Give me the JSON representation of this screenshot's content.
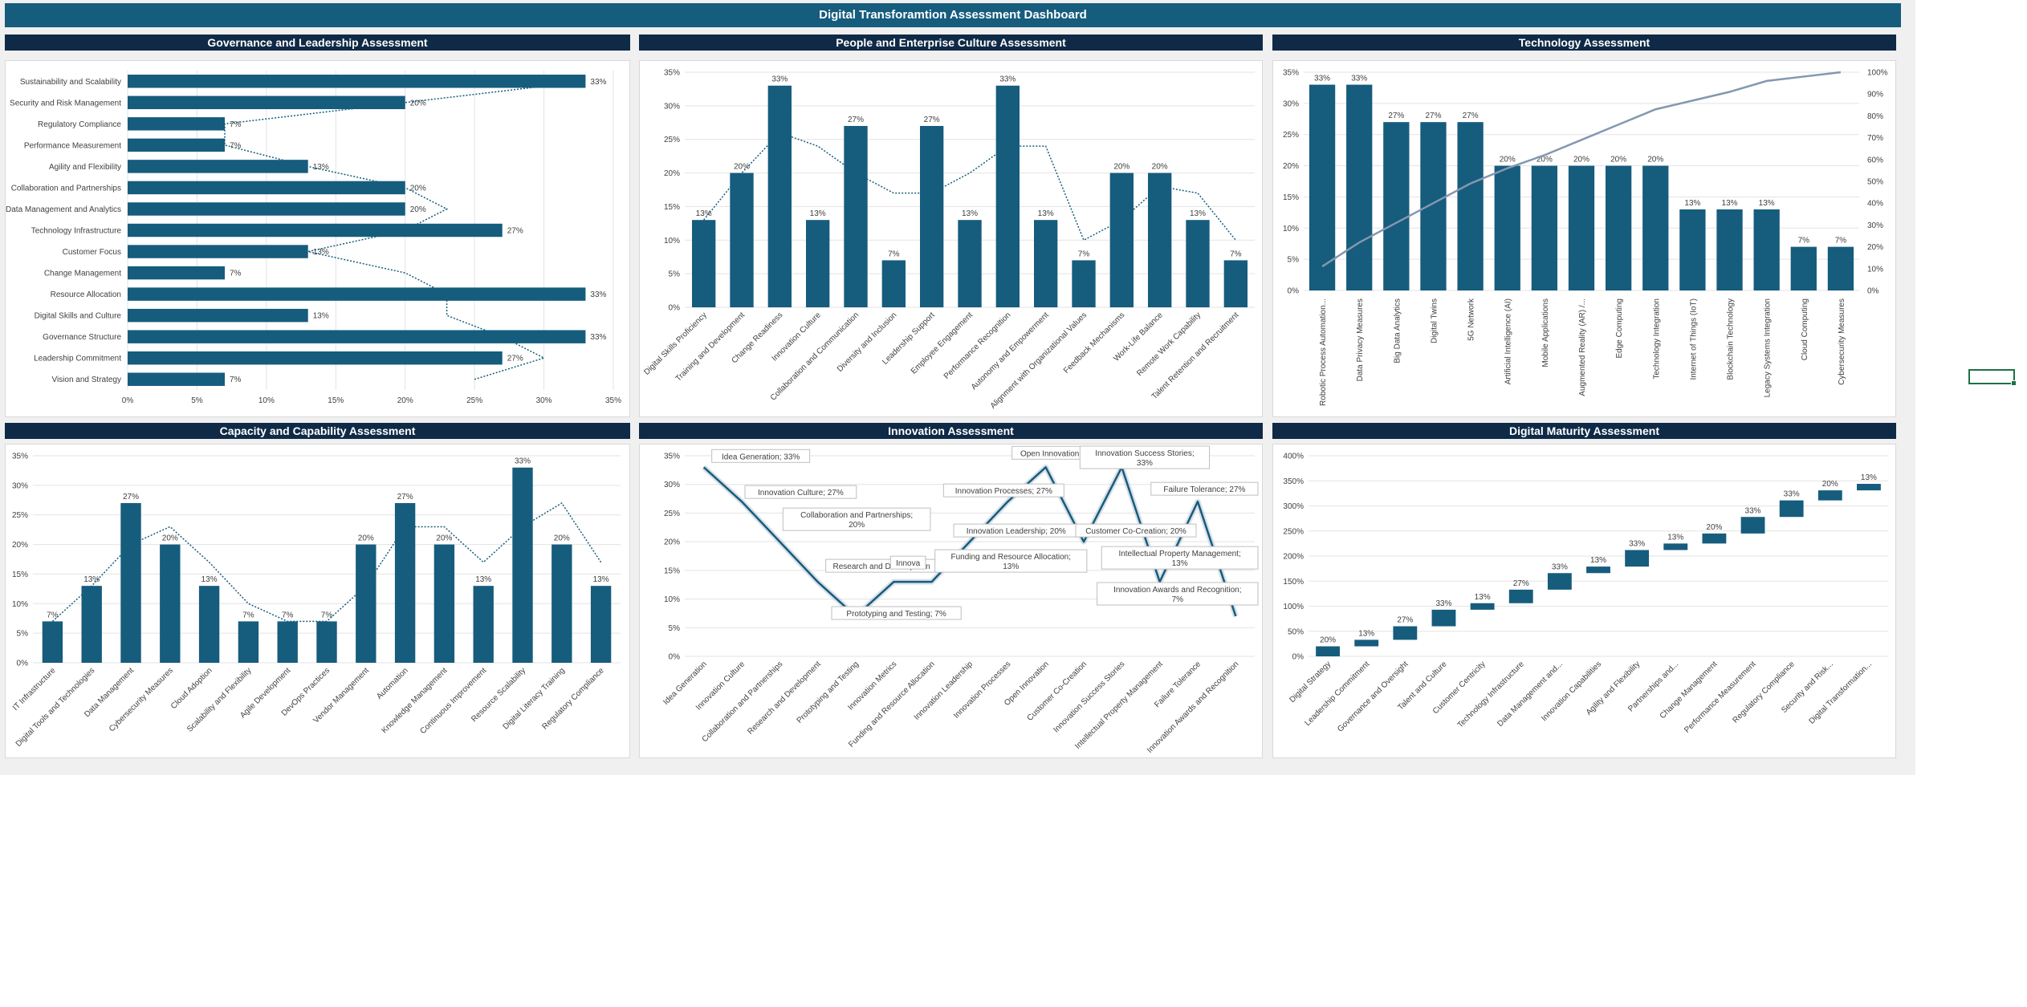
{
  "dashboard": {
    "title": "Digital Transforamtion Assessment Dashboard"
  },
  "colors": {
    "bar": "#165c7d",
    "header_dark": "#0f2a47",
    "header_blue": "#165c7d",
    "gray_line": "#8497b0"
  },
  "panels": {
    "governance": {
      "title": "Governance and Leadership Assessment"
    },
    "people": {
      "title": "People and Enterprise Culture Assessment"
    },
    "technology": {
      "title": "Technology Assessment"
    },
    "capacity": {
      "title": "Capacity and Capability Assessment"
    },
    "innovation": {
      "title": "Innovation Assessment"
    },
    "maturity": {
      "title": "Digital Maturity Assessment"
    }
  },
  "chart_data": [
    {
      "id": "governance",
      "type": "bar",
      "orientation": "horizontal",
      "categories": [
        "Sustainability and Scalability",
        "Security and Risk Management",
        "Regulatory Compliance",
        "Performance Measurement",
        "Agility and Flexibility",
        "Collaboration and Partnerships",
        "Data Management and Analytics",
        "Technology Infrastructure",
        "Customer Focus",
        "Change Management",
        "Resource Allocation",
        "Digital Skills and Culture",
        "Governance Structure",
        "Leadership Commitment",
        "Vision and Strategy"
      ],
      "values": [
        33,
        20,
        7,
        7,
        13,
        20,
        20,
        27,
        13,
        7,
        33,
        13,
        33,
        27,
        7
      ],
      "data_labels": [
        "33%",
        "20%",
        "7%",
        "7%",
        "13%",
        "20%",
        "20%",
        "27%",
        "13%",
        "7%",
        "33%",
        "13%",
        "33%",
        "27%",
        "7%"
      ],
      "dotted_line": [
        33,
        20,
        7,
        7,
        13,
        20,
        23,
        20,
        13,
        20,
        23,
        23,
        27,
        30,
        25
      ],
      "xlim": [
        0,
        35
      ],
      "x_ticks": [
        "0%",
        "5%",
        "10%",
        "15%",
        "20%",
        "25%",
        "30%",
        "35%"
      ]
    },
    {
      "id": "people",
      "type": "bar",
      "categories": [
        "Digital Skills Proficiency",
        "Training and Development",
        "Change Readiness",
        "Innovation Culture",
        "Collaboration and Communication",
        "Diversity and Inclusion",
        "Leadership Support",
        "Employee Engagement",
        "Performance Recognition",
        "Autonomy and Empowerment",
        "Alignment with Organizational Values",
        "Feedback Mechanisms",
        "Work-Life Balance",
        "Remote Work Capability",
        "Talent Retention and Recruitment"
      ],
      "values": [
        13,
        20,
        33,
        13,
        27,
        7,
        27,
        13,
        33,
        13,
        7,
        20,
        20,
        13,
        7
      ],
      "data_labels": [
        "13%",
        "20%",
        "33%",
        "13%",
        "27%",
        "7%",
        "27%",
        "13%",
        "33%",
        "13%",
        "7%",
        "20%",
        "20%",
        "13%",
        "7%"
      ],
      "dotted_line": [
        13,
        20,
        26,
        24,
        20,
        17,
        17,
        20,
        24,
        24,
        10,
        13,
        18,
        17,
        10
      ],
      "ylim": [
        0,
        35
      ],
      "y_ticks": [
        "0%",
        "5%",
        "10%",
        "15%",
        "20%",
        "25%",
        "30%",
        "35%"
      ]
    },
    {
      "id": "technology",
      "type": "bar",
      "categories": [
        "Robotic Process Automation...",
        "Data Privacy Measures",
        "Big Data Analytics",
        "Digital Twins",
        "5G Network",
        "Artificial Intelligence (AI)",
        "Mobile Applications",
        "Augmented Reality (AR) /...",
        "Edge Computing",
        "Technology Integration",
        "Internet of Things (IoT)",
        "Blockchain Technology",
        "Legacy Systems Integration",
        "Cloud Computing",
        "Cybersecurity Measures"
      ],
      "values": [
        33,
        33,
        27,
        27,
        27,
        20,
        20,
        20,
        20,
        20,
        13,
        13,
        13,
        7,
        7
      ],
      "data_labels": [
        "33%",
        "33%",
        "27%",
        "27%",
        "27%",
        "20%",
        "20%",
        "20%",
        "20%",
        "20%",
        "13%",
        "13%",
        "13%",
        "7%",
        "7%"
      ],
      "cumulative_percent": [
        11,
        22,
        31,
        40,
        49,
        56,
        62,
        69,
        76,
        83,
        87,
        91,
        96,
        98,
        100
      ],
      "ylim": [
        0,
        35
      ],
      "y_ticks": [
        "0%",
        "5%",
        "10%",
        "15%",
        "20%",
        "25%",
        "30%",
        "35%"
      ],
      "y2_ticks": [
        "0%",
        "10%",
        "20%",
        "30%",
        "40%",
        "50%",
        "60%",
        "70%",
        "80%",
        "90%",
        "100%"
      ]
    },
    {
      "id": "capacity",
      "type": "bar",
      "categories": [
        "IT Infrastructure",
        "Digital Tools and Technologies",
        "Data Management",
        "Cybersecurity Measures",
        "Cloud Adoption",
        "Scalability and Flexibility",
        "Agile Development",
        "DevOps Practices",
        "Vendor Management",
        "Automation",
        "Knowledge Management",
        "Continuous Improvement",
        "Resource Scalability",
        "Digital Literacy Training",
        "Regulatory Compliance"
      ],
      "values": [
        7,
        13,
        27,
        20,
        13,
        7,
        7,
        7,
        20,
        27,
        20,
        13,
        33,
        20,
        13
      ],
      "data_labels": [
        "7%",
        "13%",
        "27%",
        "20%",
        "13%",
        "7%",
        "7%",
        "7%",
        "20%",
        "27%",
        "20%",
        "13%",
        "33%",
        "20%",
        "13%"
      ],
      "dotted_line": [
        7,
        13,
        20,
        23,
        17,
        10,
        7,
        7,
        13,
        23,
        23,
        17,
        23,
        27,
        17
      ],
      "ylim": [
        0,
        35
      ],
      "y_ticks": [
        "0%",
        "5%",
        "10%",
        "15%",
        "20%",
        "25%",
        "30%",
        "35%"
      ]
    },
    {
      "id": "innovation",
      "type": "line",
      "categories": [
        "Idea Generation",
        "Innovation Culture",
        "Collaboration and Partnerships",
        "Research and Development",
        "Prototyping and Testing",
        "Innovation Metrics",
        "Funding and Resource Allocation",
        "Innovation Leadership",
        "Innovation Processes",
        "Open Innovation",
        "Customer Co-Creation",
        "Innovation Success Stories",
        "Intellectual Property Management",
        "Failure Tolerance",
        "Innovation Awards and Recognition"
      ],
      "values": [
        33,
        27,
        20,
        13,
        7,
        13,
        13,
        20,
        27,
        33,
        20,
        33,
        13,
        27,
        7
      ],
      "callouts": [
        "Idea Generation; 33%",
        "Innovation Culture; 27%",
        "Collaboration and Partnerships; 20%",
        "Research and Developmen",
        "Prototyping and Testing; 7%",
        "Innova",
        "Funding and Resource Allocation; 13%",
        "Innovation Leadership; 20%",
        "Innovation Processes; 27%",
        "Open Innovation",
        "Customer Co-Creation; 20%",
        "Innovation Success Stories; 33%",
        "Intellectual Property Management; 13%",
        "Failure Tolerance; 27%",
        "Innovation Awards and Recognition; 7%"
      ],
      "ylim": [
        0,
        35
      ],
      "y_ticks": [
        "0%",
        "5%",
        "10%",
        "15%",
        "20%",
        "25%",
        "30%",
        "35%"
      ]
    },
    {
      "id": "maturity",
      "type": "waterfall",
      "categories": [
        "Digital Strategy",
        "Leadership Commitment",
        "Governance and Oversight",
        "Talent and Culture",
        "Customer Centricity",
        "Technology Infrastructure",
        "Data Management and...",
        "Innovation Capabilities",
        "Agility and Flexibility",
        "Partnerships and...",
        "Change Management",
        "Performance Measurement",
        "Regulatory Compliance",
        "Security and Risk...",
        "Digital Transformation..."
      ],
      "values": [
        20,
        13,
        27,
        33,
        13,
        27,
        33,
        13,
        33,
        13,
        20,
        33,
        33,
        20,
        13
      ],
      "data_labels": [
        "20%",
        "13%",
        "27%",
        "33%",
        "13%",
        "27%",
        "33%",
        "13%",
        "33%",
        "13%",
        "20%",
        "33%",
        "33%",
        "20%",
        "13%"
      ],
      "ylim": [
        0,
        400
      ],
      "y_ticks": [
        "0%",
        "50%",
        "100%",
        "150%",
        "200%",
        "250%",
        "300%",
        "350%",
        "400%"
      ]
    }
  ]
}
